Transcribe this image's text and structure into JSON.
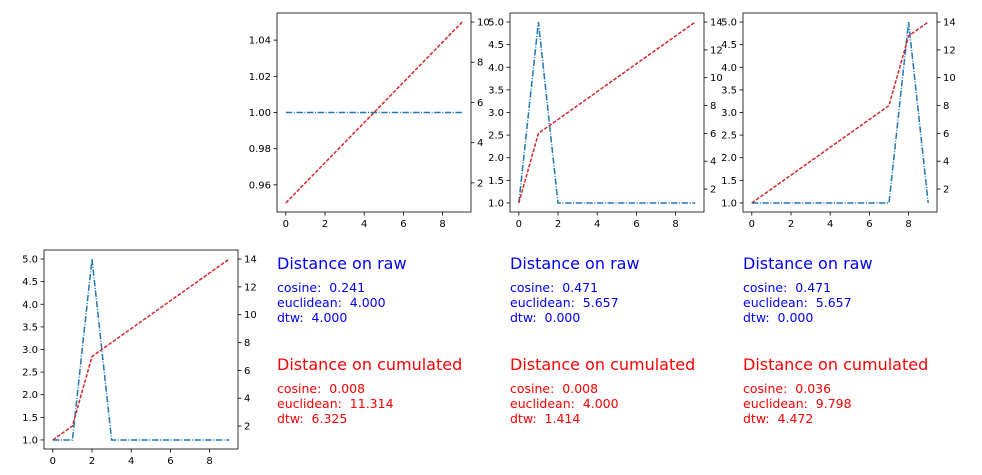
{
  "chart_data": [
    {
      "type": "line",
      "x": [
        0,
        1,
        2,
        3,
        4,
        5,
        6,
        7,
        8,
        9
      ],
      "series": [
        {
          "axis": "left",
          "color": "#1f77b4",
          "style": "dashdot",
          "values": [
            1,
            1,
            1,
            1,
            1,
            1,
            1,
            1,
            1,
            1
          ]
        },
        {
          "axis": "right",
          "color": "#d62728",
          "style": "dashed",
          "values": [
            1,
            2,
            3,
            4,
            5,
            6,
            7,
            8,
            9,
            10
          ]
        }
      ],
      "xlim": [
        -0.45,
        9.45
      ],
      "ylim": [
        0.945,
        1.055
      ],
      "y2lim": [
        0.55,
        10.45
      ],
      "xticks": [
        0,
        2,
        4,
        6,
        8
      ],
      "yticks": [
        0.96,
        0.98,
        1.0,
        1.02,
        1.04
      ],
      "y2ticks": [
        2,
        4,
        6,
        8,
        10
      ],
      "xticklabels": [
        "0",
        "2",
        "4",
        "6",
        "8"
      ],
      "yticklabels": [
        "0.96",
        "0.98",
        "1.00",
        "1.02",
        "1.04"
      ],
      "y2ticklabels": [
        "2",
        "4",
        "6",
        "8",
        "10"
      ]
    },
    {
      "type": "line",
      "x": [
        0,
        1,
        2,
        3,
        4,
        5,
        6,
        7,
        8,
        9
      ],
      "series": [
        {
          "axis": "left",
          "color": "#1f77b4",
          "style": "dashdot",
          "values": [
            1,
            5,
            1,
            1,
            1,
            1,
            1,
            1,
            1,
            1
          ]
        },
        {
          "axis": "right",
          "color": "#d62728",
          "style": "dashed",
          "values": [
            1,
            6,
            7,
            8,
            9,
            10,
            11,
            12,
            13,
            14
          ]
        }
      ],
      "xlim": [
        -0.45,
        9.45
      ],
      "ylim": [
        0.8,
        5.2
      ],
      "y2lim": [
        0.35,
        14.65
      ],
      "xticks": [
        0,
        2,
        4,
        6,
        8
      ],
      "yticks": [
        1.0,
        1.5,
        2.0,
        2.5,
        3.0,
        3.5,
        4.0,
        4.5,
        5.0
      ],
      "y2ticks": [
        2,
        4,
        6,
        8,
        10,
        12,
        14
      ],
      "xticklabels": [
        "0",
        "2",
        "4",
        "6",
        "8"
      ],
      "yticklabels": [
        "1.0",
        "1.5",
        "2.0",
        "2.5",
        "3.0",
        "3.5",
        "4.0",
        "4.5",
        "5.0"
      ],
      "y2ticklabels": [
        "2",
        "4",
        "6",
        "8",
        "10",
        "12",
        "14"
      ]
    },
    {
      "type": "line",
      "x": [
        0,
        1,
        2,
        3,
        4,
        5,
        6,
        7,
        8,
        9
      ],
      "series": [
        {
          "axis": "left",
          "color": "#1f77b4",
          "style": "dashdot",
          "values": [
            1,
            1,
            1,
            1,
            1,
            1,
            1,
            1,
            5,
            1
          ]
        },
        {
          "axis": "right",
          "color": "#d62728",
          "style": "dashed",
          "values": [
            1,
            2,
            3,
            4,
            5,
            6,
            7,
            8,
            13,
            14
          ]
        }
      ],
      "xlim": [
        -0.45,
        9.45
      ],
      "ylim": [
        0.8,
        5.2
      ],
      "y2lim": [
        0.35,
        14.65
      ],
      "xticks": [
        0,
        2,
        4,
        6,
        8
      ],
      "yticks": [
        1.0,
        1.5,
        2.0,
        2.5,
        3.0,
        3.5,
        4.0,
        4.5,
        5.0
      ],
      "y2ticks": [
        2,
        4,
        6,
        8,
        10,
        12,
        14
      ],
      "xticklabels": [
        "0",
        "2",
        "4",
        "6",
        "8"
      ],
      "yticklabels": [
        "1.0",
        "1.5",
        "2.0",
        "2.5",
        "3.0",
        "3.5",
        "4.0",
        "4.5",
        "5.0"
      ],
      "y2ticklabels": [
        "2",
        "4",
        "6",
        "8",
        "10",
        "12",
        "14"
      ]
    },
    {
      "type": "line",
      "x": [
        0,
        1,
        2,
        3,
        4,
        5,
        6,
        7,
        8,
        9
      ],
      "series": [
        {
          "axis": "left",
          "color": "#1f77b4",
          "style": "dashdot",
          "values": [
            1,
            1,
            5,
            1,
            1,
            1,
            1,
            1,
            1,
            1
          ]
        },
        {
          "axis": "right",
          "color": "#d62728",
          "style": "dashed",
          "values": [
            1,
            2,
            7,
            8,
            9,
            10,
            11,
            12,
            13,
            14
          ]
        }
      ],
      "xlim": [
        -0.45,
        9.45
      ],
      "ylim": [
        0.8,
        5.2
      ],
      "y2lim": [
        0.35,
        14.65
      ],
      "xticks": [
        0,
        2,
        4,
        6,
        8
      ],
      "yticks": [
        1.0,
        1.5,
        2.0,
        2.5,
        3.0,
        3.5,
        4.0,
        4.5,
        5.0
      ],
      "y2ticks": [
        2,
        4,
        6,
        8,
        10,
        12,
        14
      ],
      "xticklabels": [
        "0",
        "2",
        "4",
        "6",
        "8"
      ],
      "yticklabels": [
        "1.0",
        "1.5",
        "2.0",
        "2.5",
        "3.0",
        "3.5",
        "4.0",
        "4.5",
        "5.0"
      ],
      "y2ticklabels": [
        "2",
        "4",
        "6",
        "8",
        "10",
        "12",
        "14"
      ]
    }
  ],
  "panels": [
    {
      "raw_title": "Distance on raw",
      "raw_lines": [
        "cosine:  0.241",
        "euclidean:  4.000",
        "dtw:  4.000"
      ],
      "cum_title": "Distance on cumulated",
      "cum_lines": [
        "cosine:  0.008",
        "euclidean:  11.314",
        "dtw:  6.325"
      ]
    },
    {
      "raw_title": "Distance on raw",
      "raw_lines": [
        "cosine:  0.471",
        "euclidean:  5.657",
        "dtw:  0.000"
      ],
      "cum_title": "Distance on cumulated",
      "cum_lines": [
        "cosine:  0.008",
        "euclidean:  4.000",
        "dtw:  1.414"
      ]
    },
    {
      "raw_title": "Distance on raw",
      "raw_lines": [
        "cosine:  0.471",
        "euclidean:  5.657",
        "dtw:  0.000"
      ],
      "cum_title": "Distance on cumulated",
      "cum_lines": [
        "cosine:  0.036",
        "euclidean:  9.798",
        "dtw:  4.472"
      ]
    }
  ],
  "colors": {
    "raw_text": "#0000ff",
    "cum_text": "#ff0000",
    "series_blue": "#1f77b4",
    "series_red": "#d62728"
  }
}
